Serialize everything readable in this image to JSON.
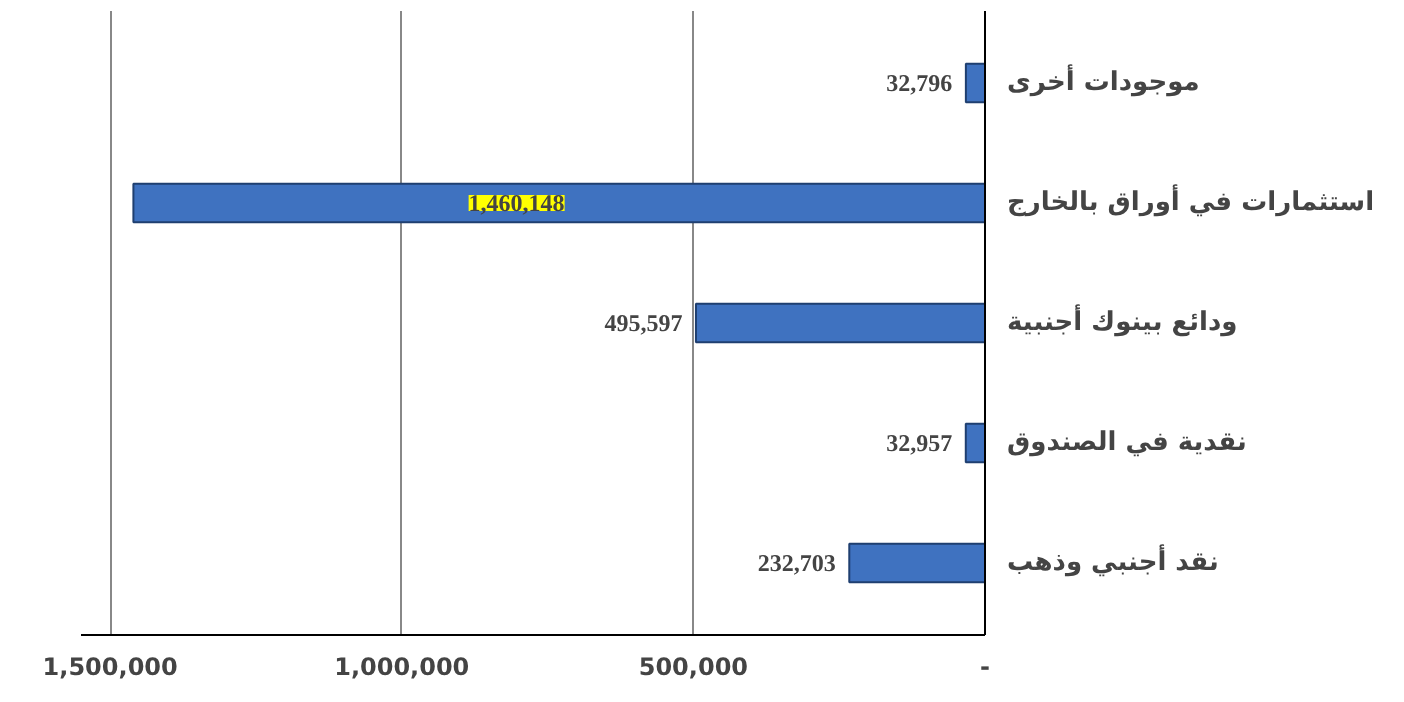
{
  "chart_data": {
    "type": "bar",
    "orientation": "horizontal",
    "categories": [
      "موجودات أخرى",
      "استثمارات في أوراق بالخارج",
      "ودائع بينوك أجنبية",
      "نقدية في الصندوق",
      "نقد أجنبي وذهب"
    ],
    "values": [
      32796,
      1460148,
      495597,
      32957,
      232703
    ],
    "color": "#3f72c0",
    "xlim": [
      1550000,
      0
    ],
    "xticks": [
      {
        "value": 1500000,
        "label": "1,500,000"
      },
      {
        "value": 1000000,
        "label": "1,000,000"
      },
      {
        "value": 500000,
        "label": "500,000"
      },
      {
        "value": 0,
        "label": "-"
      }
    ],
    "grid": "x",
    "value_labels": [
      "32,796",
      "1,460,148",
      "495,597",
      "32,957",
      "232,703"
    ]
  }
}
